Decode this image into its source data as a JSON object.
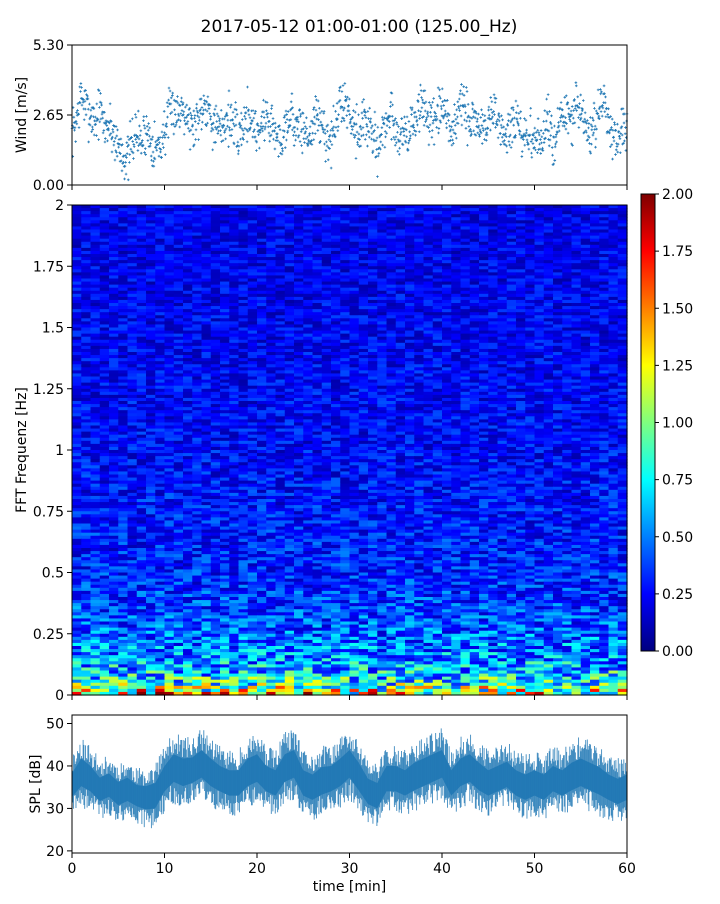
{
  "title": "2017-05-12 01:00-01:00 (125.00_Hz)",
  "chart_data": [
    {
      "id": "wind",
      "type": "scatter",
      "title": "",
      "xlabel": "",
      "ylabel": "Wind [m/s]",
      "xlim": [
        0,
        60
      ],
      "ylim": [
        0,
        5.3
      ],
      "yticks": [
        0.0,
        2.65,
        5.3
      ],
      "ytick_labels": [
        "0.00",
        "2.65",
        "5.30"
      ],
      "xticks": [
        0,
        10,
        20,
        30,
        40,
        50,
        60
      ],
      "series": [
        {
          "color": "#1f77b4",
          "marker": "+",
          "values": [
            [
              0.0,
              1.9
            ],
            [
              0.5,
              2.5
            ],
            [
              1.0,
              3.4
            ],
            [
              1.5,
              2.9
            ],
            [
              2.0,
              2.7
            ],
            [
              2.5,
              2.4
            ],
            [
              3.0,
              2.9
            ],
            [
              3.5,
              2.2
            ],
            [
              4.0,
              2.3
            ],
            [
              4.5,
              1.9
            ],
            [
              5.0,
              1.5
            ],
            [
              5.5,
              1.2
            ],
            [
              6.0,
              0.9
            ],
            [
              6.5,
              1.7
            ],
            [
              7.0,
              2.0
            ],
            [
              7.5,
              1.6
            ],
            [
              8.0,
              2.1
            ],
            [
              8.5,
              1.8
            ],
            [
              9.0,
              1.4
            ],
            [
              9.5,
              1.5
            ],
            [
              10.0,
              2.0
            ],
            [
              10.5,
              2.6
            ],
            [
              11.0,
              2.9
            ],
            [
              11.5,
              2.7
            ],
            [
              12.0,
              3.1
            ],
            [
              12.5,
              2.6
            ],
            [
              13.0,
              2.1
            ],
            [
              13.5,
              2.5
            ],
            [
              14.0,
              2.9
            ],
            [
              14.5,
              3.2
            ],
            [
              15.0,
              2.6
            ],
            [
              15.5,
              2.2
            ],
            [
              16.0,
              2.0
            ],
            [
              16.5,
              2.4
            ],
            [
              17.0,
              2.6
            ],
            [
              17.5,
              2.2
            ],
            [
              18.0,
              1.8
            ],
            [
              18.5,
              2.3
            ],
            [
              19.0,
              2.7
            ],
            [
              19.5,
              2.4
            ],
            [
              20.0,
              2.0
            ],
            [
              20.5,
              2.3
            ],
            [
              21.0,
              2.6
            ],
            [
              21.5,
              2.4
            ],
            [
              22.0,
              1.9
            ],
            [
              22.5,
              1.6
            ],
            [
              23.0,
              2.2
            ],
            [
              23.5,
              2.7
            ],
            [
              24.0,
              2.4
            ],
            [
              24.5,
              2.0
            ],
            [
              25.0,
              2.2
            ],
            [
              25.5,
              1.7
            ],
            [
              26.0,
              2.3
            ],
            [
              26.5,
              2.6
            ],
            [
              27.0,
              2.2
            ],
            [
              27.5,
              1.9
            ],
            [
              28.0,
              1.6
            ],
            [
              28.5,
              2.3
            ],
            [
              29.0,
              3.0
            ],
            [
              29.5,
              3.2
            ],
            [
              30.0,
              2.7
            ],
            [
              30.5,
              2.4
            ],
            [
              31.0,
              2.0
            ],
            [
              31.5,
              2.5
            ],
            [
              32.0,
              2.2
            ],
            [
              32.5,
              1.8
            ],
            [
              33.0,
              1.5
            ],
            [
              33.5,
              1.9
            ],
            [
              34.0,
              2.4
            ],
            [
              34.5,
              2.7
            ],
            [
              35.0,
              2.1
            ],
            [
              35.5,
              1.8
            ],
            [
              36.0,
              2.2
            ],
            [
              36.5,
              1.9
            ],
            [
              37.0,
              2.4
            ],
            [
              37.5,
              2.8
            ],
            [
              38.0,
              3.0
            ],
            [
              38.5,
              2.6
            ],
            [
              39.0,
              2.2
            ],
            [
              39.5,
              2.5
            ],
            [
              40.0,
              2.9
            ],
            [
              40.5,
              2.5
            ],
            [
              41.0,
              2.0
            ],
            [
              41.5,
              2.4
            ],
            [
              42.0,
              3.1
            ],
            [
              42.5,
              2.8
            ],
            [
              43.0,
              2.2
            ],
            [
              43.5,
              2.6
            ],
            [
              44.0,
              2.3
            ],
            [
              44.5,
              2.0
            ],
            [
              45.0,
              2.4
            ],
            [
              45.5,
              2.9
            ],
            [
              46.0,
              2.5
            ],
            [
              46.5,
              2.0
            ],
            [
              47.0,
              1.8
            ],
            [
              47.5,
              2.2
            ],
            [
              48.0,
              2.4
            ],
            [
              48.5,
              1.9
            ],
            [
              49.0,
              1.6
            ],
            [
              49.5,
              2.0
            ],
            [
              50.0,
              1.7
            ],
            [
              50.5,
              1.5
            ],
            [
              51.0,
              2.0
            ],
            [
              51.5,
              2.3
            ],
            [
              52.0,
              1.8
            ],
            [
              52.5,
              2.1
            ],
            [
              53.0,
              2.5
            ],
            [
              53.5,
              2.7
            ],
            [
              54.0,
              2.3
            ],
            [
              54.5,
              2.9
            ],
            [
              55.0,
              2.7
            ],
            [
              55.5,
              2.2
            ],
            [
              56.0,
              1.8
            ],
            [
              56.5,
              2.2
            ],
            [
              57.0,
              2.6
            ],
            [
              57.5,
              3.3
            ],
            [
              58.0,
              2.5
            ],
            [
              58.5,
              2.0
            ],
            [
              59.0,
              1.7
            ],
            [
              59.5,
              2.1
            ],
            [
              60.0,
              1.8
            ]
          ]
        }
      ]
    },
    {
      "id": "spectrogram",
      "type": "heatmap",
      "title": "",
      "xlabel": "",
      "ylabel": "FFT Frequenz [Hz]",
      "xlim": [
        0,
        60
      ],
      "ylim": [
        0,
        2
      ],
      "yticks": [
        0,
        0.25,
        0.5,
        0.75,
        1,
        1.25,
        1.5,
        1.75,
        2
      ],
      "ytick_labels": [
        "0",
        "0.25",
        "0.5",
        "0.75",
        "1",
        "1.25",
        "1.5",
        "1.75",
        "2"
      ],
      "xticks": [
        0,
        10,
        20,
        30,
        40,
        50,
        60
      ],
      "colormap": "jet",
      "colorbar": {
        "vmin": 0,
        "vmax": 2,
        "ticks": [
          "0.00",
          "0.25",
          "0.50",
          "0.75",
          "1.00",
          "1.25",
          "1.50",
          "1.75",
          "2.00"
        ],
        "stops": [
          "#00007f",
          "#0000ff",
          "#007fff",
          "#00ffff",
          "#7fff7f",
          "#ffff00",
          "#ff7f00",
          "#ff0000",
          "#7f0000"
        ]
      },
      "frequency_profile": [
        {
          "freq": 0.0,
          "level": 1.3
        },
        {
          "freq": 0.05,
          "level": 0.75
        },
        {
          "freq": 0.15,
          "level": 0.5
        },
        {
          "freq": 0.3,
          "level": 0.38
        },
        {
          "freq": 0.5,
          "level": 0.3
        },
        {
          "freq": 1.0,
          "level": 0.24
        },
        {
          "freq": 2.0,
          "level": 0.2
        }
      ]
    },
    {
      "id": "spl",
      "type": "area",
      "title": "",
      "xlabel": "time [min]",
      "ylabel": "SPL [dB]",
      "xlim": [
        0,
        60
      ],
      "ylim": [
        19.5,
        52
      ],
      "yticks": [
        20,
        30,
        40,
        50
      ],
      "ytick_labels": [
        "20",
        "30",
        "40",
        "50"
      ],
      "xticks": [
        0,
        10,
        20,
        30,
        40,
        50,
        60
      ],
      "xtick_labels": [
        "0",
        "10",
        "20",
        "30",
        "40",
        "50",
        "60"
      ],
      "series": [
        {
          "color": "#1f77b4",
          "x": [
            0,
            1,
            2,
            3,
            4,
            5,
            6,
            7,
            8,
            9,
            10,
            11,
            12,
            13,
            14,
            15,
            16,
            17,
            18,
            19,
            20,
            21,
            22,
            23,
            24,
            25,
            26,
            27,
            28,
            29,
            30,
            31,
            32,
            33,
            34,
            35,
            36,
            37,
            38,
            39,
            40,
            41,
            42,
            43,
            44,
            45,
            46,
            47,
            48,
            49,
            50,
            51,
            52,
            53,
            54,
            55,
            56,
            57,
            58,
            59,
            60
          ],
          "low": [
            30,
            32,
            31,
            29,
            30,
            28,
            29,
            28,
            27,
            27,
            31,
            33,
            32,
            33,
            34,
            32,
            31,
            30,
            30,
            32,
            33,
            31,
            30,
            33,
            34,
            30,
            29,
            30,
            31,
            32,
            34,
            31,
            28,
            27,
            31,
            31,
            30,
            31,
            32,
            33,
            34,
            30,
            32,
            33,
            31,
            30,
            31,
            32,
            30,
            29,
            30,
            29,
            31,
            30,
            31,
            32,
            31,
            30,
            29,
            28,
            29
          ],
          "high": [
            41,
            45,
            43,
            40,
            41,
            39,
            40,
            38,
            38,
            39,
            43,
            46,
            45,
            45,
            47,
            45,
            43,
            42,
            42,
            45,
            46,
            43,
            42,
            46,
            47,
            42,
            41,
            43,
            43,
            45,
            47,
            44,
            40,
            39,
            43,
            43,
            42,
            44,
            45,
            46,
            47,
            42,
            45,
            46,
            44,
            42,
            43,
            44,
            42,
            41,
            42,
            41,
            43,
            42,
            44,
            45,
            44,
            43,
            41,
            40,
            41
          ]
        }
      ]
    }
  ]
}
